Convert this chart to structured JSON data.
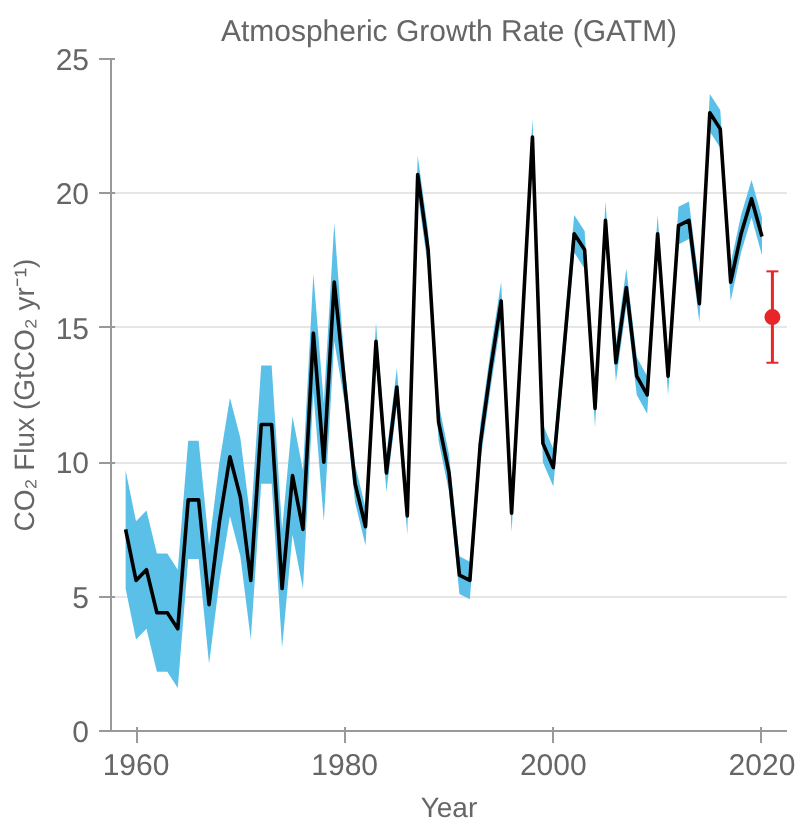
{
  "chart_data": {
    "type": "line",
    "title": "Atmospheric Growth Rate (GATM)",
    "xlabel": "Year",
    "ylabel": "CO₂ Flux (GtCO₂ yr⁻¹)",
    "xlim": [
      1957.6,
      2022.4
    ],
    "xticks": [
      1960,
      1980,
      2000,
      2020
    ],
    "ylim": [
      0,
      25
    ],
    "yticks": [
      0,
      5,
      10,
      15,
      20,
      25
    ],
    "grid": "y",
    "series": [
      {
        "color": "#000000",
        "x": [
          1959,
          1960,
          1961,
          1962,
          1963,
          1964,
          1965,
          1966,
          1967,
          1968,
          1969,
          1970,
          1971,
          1972,
          1973,
          1974,
          1975,
          1976,
          1977,
          1978,
          1979,
          1980,
          1981,
          1982,
          1983,
          1984,
          1985,
          1986,
          1987,
          1988,
          1989,
          1990,
          1991,
          1992,
          1993,
          1994,
          1995,
          1996,
          1997,
          1998,
          1999,
          2000,
          2001,
          2002,
          2003,
          2004,
          2005,
          2006,
          2007,
          2008,
          2009,
          2010,
          2011,
          2012,
          2013,
          2014,
          2015,
          2016,
          2017,
          2018,
          2019,
          2020
        ],
        "values": [
          7.5,
          5.6,
          6.0,
          4.4,
          4.4,
          3.8,
          8.6,
          8.6,
          4.7,
          7.8,
          10.2,
          8.7,
          5.6,
          11.4,
          11.4,
          5.3,
          9.5,
          7.5,
          14.8,
          10.0,
          16.7,
          12.9,
          9.2,
          7.6,
          14.5,
          9.6,
          12.8,
          8.0,
          20.7,
          17.9,
          11.5,
          9.6,
          5.8,
          5.6,
          10.7,
          13.5,
          16.0,
          8.1,
          15.0,
          22.1,
          10.7,
          9.8,
          14.1,
          18.5,
          17.9,
          12.0,
          19.0,
          13.7,
          16.5,
          13.2,
          12.5,
          18.5,
          13.2,
          18.8,
          19.0,
          15.9,
          23.0,
          22.4,
          16.7,
          18.5,
          19.8,
          18.4
        ],
        "lower": [
          5.3,
          3.4,
          3.8,
          2.2,
          2.2,
          1.6,
          6.4,
          6.4,
          2.5,
          5.6,
          8.0,
          6.5,
          3.4,
          9.2,
          9.2,
          3.1,
          7.3,
          5.3,
          12.6,
          7.8,
          14.5,
          12.2,
          8.5,
          6.9,
          13.8,
          8.9,
          12.1,
          7.3,
          20.0,
          17.2,
          10.8,
          8.9,
          5.1,
          4.9,
          10.0,
          12.8,
          15.3,
          7.4,
          14.3,
          21.4,
          10.0,
          9.1,
          13.4,
          17.8,
          17.2,
          11.3,
          18.3,
          13.0,
          15.8,
          12.5,
          11.8,
          17.8,
          12.5,
          18.1,
          18.3,
          15.2,
          22.3,
          21.7,
          16.0,
          17.8,
          19.1,
          17.7
        ],
        "upper": [
          9.7,
          7.8,
          8.2,
          6.6,
          6.6,
          6.0,
          10.8,
          10.8,
          6.9,
          10.0,
          12.4,
          10.9,
          7.8,
          13.6,
          13.6,
          7.5,
          11.7,
          9.7,
          17.0,
          12.2,
          18.9,
          13.6,
          9.9,
          8.3,
          15.2,
          10.3,
          13.5,
          8.7,
          21.4,
          18.6,
          12.2,
          10.3,
          6.5,
          6.3,
          11.4,
          14.2,
          16.7,
          8.8,
          15.7,
          22.8,
          11.4,
          10.5,
          14.8,
          19.2,
          18.6,
          12.7,
          19.7,
          14.4,
          17.2,
          13.9,
          13.2,
          19.2,
          13.9,
          19.5,
          19.7,
          16.6,
          23.7,
          23.1,
          17.4,
          19.2,
          20.5,
          19.1
        ]
      },
      {
        "type": "scatter",
        "color": "#e8262a",
        "x": [
          2021
        ],
        "values": [
          15.4
        ],
        "errors": [
          [
            13.7,
            17.1
          ]
        ]
      }
    ]
  }
}
